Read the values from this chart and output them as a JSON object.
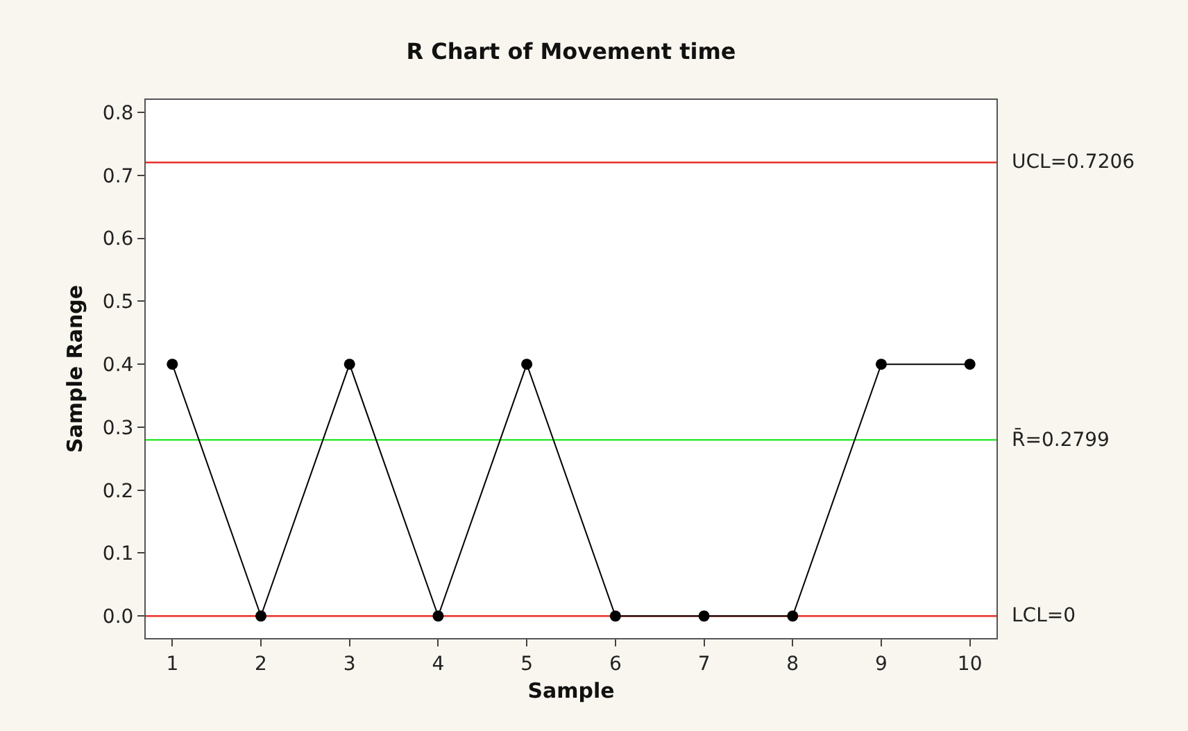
{
  "chart_data": {
    "type": "line",
    "title": "R Chart of Movement time",
    "xlabel": "Sample",
    "ylabel": "Sample Range",
    "x": [
      1,
      2,
      3,
      4,
      5,
      6,
      7,
      8,
      9,
      10
    ],
    "series": [
      {
        "color": "#000000",
        "values": [
          0.4,
          0,
          0.4,
          0,
          0.4,
          0,
          0,
          0,
          0.4,
          0.4
        ]
      }
    ],
    "xlim": [
      0.7,
      10.3
    ],
    "xticks": [
      1,
      2,
      3,
      4,
      5,
      6,
      7,
      8,
      9,
      10
    ],
    "ylim": [
      -0.035,
      0.82
    ],
    "yticks": [
      {
        "value": 0,
        "label": "0.0"
      },
      {
        "value": 0.1,
        "label": "0.1"
      },
      {
        "value": 0.2,
        "label": "0.2"
      },
      {
        "value": 0.3,
        "label": "0.3"
      },
      {
        "value": 0.4,
        "label": "0.4"
      },
      {
        "value": 0.5,
        "label": "0.5"
      },
      {
        "value": 0.6,
        "label": "0.6"
      },
      {
        "value": 0.7,
        "label": "0.7"
      },
      {
        "value": 0.8,
        "label": "0.8"
      }
    ],
    "ref_lines": [
      {
        "axis": "y",
        "value": 0.7206,
        "label": "UCL=0.7206",
        "color": "#e8302a"
      },
      {
        "axis": "y",
        "value": 0.2799,
        "label": "R̄=0.2799",
        "color": "#33e833"
      },
      {
        "axis": "y",
        "value": 0,
        "label": "LCL=0",
        "color": "#e8302a"
      }
    ],
    "marker": "circle",
    "line_style": "solid",
    "grid": false
  }
}
